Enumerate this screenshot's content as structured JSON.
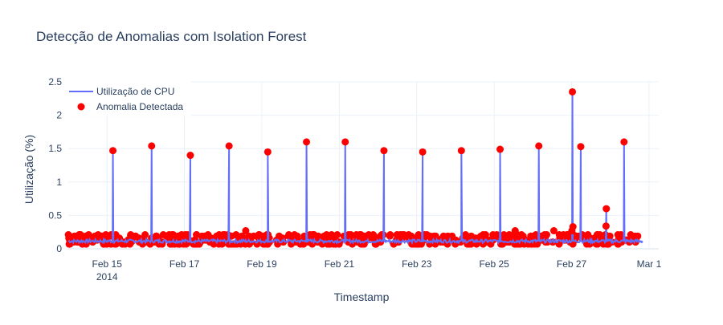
{
  "chart_data": {
    "type": "line",
    "title": "Detecção de Anomalias com Isolation Forest",
    "xlabel": "Timestamp",
    "ylabel": "Utilização (%)",
    "xlim": [
      "2014-02-14T00:00",
      "2014-03-01T06:00"
    ],
    "ylim": [
      0,
      2.5
    ],
    "yticks": [
      0,
      0.5,
      1,
      1.5,
      2,
      2.5
    ],
    "ytick_labels": [
      "0",
      "0.5",
      "1",
      "1.5",
      "2",
      "2.5"
    ],
    "xticks": [
      "2014-02-15",
      "2014-02-17",
      "2014-02-19",
      "2014-02-21",
      "2014-02-23",
      "2014-02-25",
      "2014-02-27",
      "2014-03-01"
    ],
    "xtick_labels": [
      "Feb 15",
      "Feb 17",
      "Feb 19",
      "Feb 21",
      "Feb 23",
      "Feb 25",
      "Feb 27",
      "Mar 1"
    ],
    "xtick_sublabel": "2014",
    "grid": true,
    "legend_position": "top-left",
    "series": [
      {
        "name": "Utilização de CPU",
        "kind": "line",
        "color": "#636efa",
        "x": [
          "2014-02-14T00:00",
          "2014-02-14T12:00",
          "2014-02-15T03:00",
          "2014-02-15T03:40",
          "2014-02-15T04:20",
          "2014-02-15T10:00",
          "2014-02-16T00:00",
          "2014-02-16T03:00",
          "2014-02-16T03:40",
          "2014-02-16T04:20",
          "2014-02-16T12:00",
          "2014-02-17T03:00",
          "2014-02-17T03:40",
          "2014-02-17T04:20",
          "2014-02-17T14:00",
          "2014-02-18T03:00",
          "2014-02-18T03:40",
          "2014-02-18T04:20",
          "2014-02-18T12:00",
          "2014-02-19T03:00",
          "2014-02-19T03:40",
          "2014-02-19T04:20",
          "2014-02-19T16:00",
          "2014-02-20T03:00",
          "2014-02-20T03:40",
          "2014-02-20T04:20",
          "2014-02-20T12:00",
          "2014-02-21T03:00",
          "2014-02-21T03:40",
          "2014-02-21T04:20",
          "2014-02-21T15:00",
          "2014-02-22T03:00",
          "2014-02-22T03:40",
          "2014-02-22T04:20",
          "2014-02-22T12:00",
          "2014-02-23T03:00",
          "2014-02-23T03:40",
          "2014-02-23T04:20",
          "2014-02-23T14:00",
          "2014-02-24T03:00",
          "2014-02-24T03:40",
          "2014-02-24T04:20",
          "2014-02-24T12:00",
          "2014-02-25T03:00",
          "2014-02-25T03:40",
          "2014-02-25T04:20",
          "2014-02-25T14:00",
          "2014-02-26T03:00",
          "2014-02-26T03:40",
          "2014-02-26T04:20",
          "2014-02-26T16:00",
          "2014-02-26T23:50",
          "2014-02-27T00:30",
          "2014-02-27T01:10",
          "2014-02-27T05:00",
          "2014-02-27T05:40",
          "2014-02-27T06:20",
          "2014-02-27T14:00",
          "2014-02-27T20:50",
          "2014-02-27T21:30",
          "2014-02-27T22:10",
          "2014-02-28T07:50",
          "2014-02-28T08:30",
          "2014-02-28T09:10",
          "2014-02-28T16:00",
          "2014-02-28T20:00"
        ],
        "y": [
          0.08,
          0.1,
          0.11,
          1.47,
          0.11,
          0.12,
          0.11,
          0.12,
          1.54,
          0.12,
          0.11,
          0.11,
          1.4,
          0.11,
          0.12,
          0.12,
          1.54,
          0.12,
          0.11,
          0.12,
          1.45,
          0.12,
          0.11,
          0.12,
          1.6,
          0.12,
          0.12,
          0.12,
          1.6,
          0.12,
          0.11,
          0.11,
          1.47,
          0.11,
          0.12,
          0.12,
          1.45,
          0.12,
          0.11,
          0.12,
          1.47,
          0.12,
          0.11,
          0.12,
          1.49,
          0.12,
          0.12,
          0.12,
          1.54,
          0.12,
          0.11,
          0.12,
          2.35,
          0.12,
          0.12,
          1.53,
          0.12,
          0.11,
          0.12,
          0.6,
          0.12,
          0.12,
          1.6,
          0.12,
          0.1,
          0.08
        ]
      },
      {
        "name": "Anomalia Detectada",
        "kind": "markers",
        "color": "#ff0000",
        "x": [
          "2014-02-15T03:40",
          "2014-02-16T03:40",
          "2014-02-17T03:40",
          "2014-02-18T03:40",
          "2014-02-19T03:40",
          "2014-02-20T03:40",
          "2014-02-21T03:40",
          "2014-02-22T03:40",
          "2014-02-23T03:40",
          "2014-02-24T03:40",
          "2014-02-25T03:40",
          "2014-02-26T03:40",
          "2014-02-27T00:30",
          "2014-02-27T05:40",
          "2014-02-27T21:30",
          "2014-02-28T08:30",
          "2014-02-27T00:50",
          "2014-02-27T21:20",
          "2014-02-26T13:00",
          "2014-02-18T14:00",
          "2014-02-25T13:00",
          "2014-02-27T00:10"
        ],
        "y": [
          1.47,
          1.54,
          1.4,
          1.54,
          1.45,
          1.6,
          1.6,
          1.47,
          1.45,
          1.47,
          1.49,
          1.54,
          2.35,
          1.53,
          0.6,
          1.6,
          0.33,
          0.34,
          0.27,
          0.27,
          0.27,
          0.27
        ]
      }
    ],
    "anomaly_band": {
      "description_note": "",
      "x_start": "2014-02-14T00:00",
      "x_end": "2014-02-28T20:00",
      "y_values": [
        0.07,
        0.1,
        0.13,
        0.16,
        0.19,
        0.21
      ]
    }
  }
}
